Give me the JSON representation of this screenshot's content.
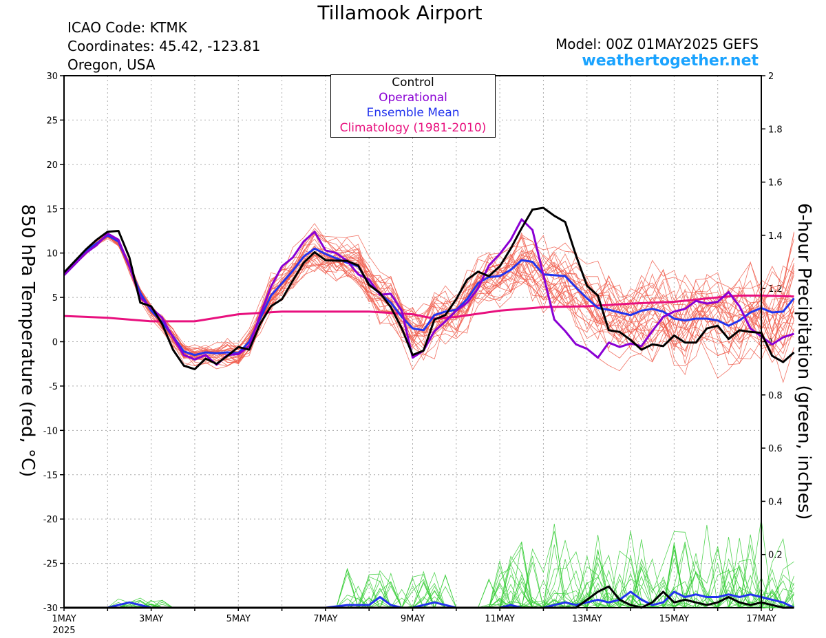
{
  "header": {
    "title": "Tillamook Airport",
    "icao": "ICAO Code: KTMK",
    "coords": "Coordinates: 45.42, -123.81",
    "region": "Oregon, USA",
    "model": "Model: 00Z 01MAY2025 GEFS",
    "site": "weathertogether.net"
  },
  "legend": {
    "items": [
      {
        "label": "Control",
        "color": "#000000"
      },
      {
        "label": "Operational",
        "color": "#8a00d4"
      },
      {
        "label": "Ensemble Mean",
        "color": "#2233ee"
      },
      {
        "label": "Climatology (1981-2010)",
        "color": "#e8107e"
      }
    ]
  },
  "chart_data": {
    "type": "line",
    "ylabel_left": "850 hPa Temperature (red, °C)",
    "ylabel_right": "6-hour Precipitation (green, inches)",
    "x_ticks": [
      "1MAY",
      "3MAY",
      "5MAY",
      "7MAY",
      "9MAY",
      "11MAY",
      "13MAY",
      "15MAY",
      "17MAY"
    ],
    "x_sub_label": "2025",
    "xlim_days": [
      0,
      16
    ],
    "ylim_left": [
      -30,
      30
    ],
    "ylim_right": [
      0,
      2
    ],
    "y_ticks_left": [
      30,
      25,
      20,
      15,
      10,
      5,
      0,
      -5,
      -10,
      -15,
      -20,
      -25,
      -30
    ],
    "y_ticks_right": [
      "2",
      "1.8",
      "1.6",
      "1.4",
      "1.2",
      "1",
      "0.8",
      "0.6",
      "0.4",
      "0.2",
      "0"
    ],
    "grid": true,
    "colors": {
      "members_temp": "#f05a4a",
      "members_precip": "#33cc33",
      "control": "#000000",
      "operational": "#8a00d4",
      "mean": "#2233ee",
      "climatology": "#e8107e"
    },
    "series": [
      {
        "name": "Control",
        "kind": "temp",
        "points": [
          [
            0,
            7.8
          ],
          [
            0.5,
            10.4
          ],
          [
            0.75,
            11.5
          ],
          [
            1,
            12.4
          ],
          [
            1.25,
            12.5
          ],
          [
            1.5,
            9.5
          ],
          [
            1.75,
            4.4
          ],
          [
            2,
            4
          ],
          [
            2.25,
            2
          ],
          [
            2.5,
            -0.9
          ],
          [
            2.75,
            -2.7
          ],
          [
            3,
            -3.1
          ],
          [
            3.25,
            -1.9
          ],
          [
            3.5,
            -2.5
          ],
          [
            3.75,
            -1.6
          ],
          [
            4,
            -0.6
          ],
          [
            4.25,
            -0.9
          ],
          [
            4.5,
            2
          ],
          [
            4.75,
            4
          ],
          [
            5,
            4.8
          ],
          [
            5.25,
            6.9
          ],
          [
            5.5,
            8.9
          ],
          [
            5.75,
            10.1
          ],
          [
            6,
            9.2
          ],
          [
            6.5,
            9.1
          ],
          [
            6.75,
            8.6
          ],
          [
            7,
            6.4
          ],
          [
            7.25,
            5.5
          ],
          [
            7.5,
            3.9
          ],
          [
            7.75,
            1.5
          ],
          [
            8,
            -1.5
          ],
          [
            8.25,
            -1
          ],
          [
            8.5,
            2.5
          ],
          [
            8.75,
            3
          ],
          [
            9,
            4.8
          ],
          [
            9.25,
            7
          ],
          [
            9.5,
            7.9
          ],
          [
            9.75,
            7.4
          ],
          [
            10,
            8.5
          ],
          [
            10.25,
            10.5
          ],
          [
            10.5,
            12.8
          ],
          [
            10.75,
            14.9
          ],
          [
            11,
            15.1
          ],
          [
            11.25,
            14.2
          ],
          [
            11.5,
            13.5
          ],
          [
            11.75,
            9.7
          ],
          [
            12,
            6.3
          ],
          [
            12.25,
            5.2
          ],
          [
            12.5,
            1.3
          ],
          [
            12.75,
            1.1
          ],
          [
            13,
            0.2
          ],
          [
            13.25,
            -0.9
          ],
          [
            13.5,
            -0.3
          ],
          [
            13.75,
            -0.5
          ],
          [
            14,
            0.7
          ],
          [
            14.25,
            -0.1
          ],
          [
            14.5,
            -0.1
          ],
          [
            14.75,
            1.5
          ],
          [
            15,
            1.8
          ],
          [
            15.25,
            0.3
          ],
          [
            15.5,
            1.3
          ],
          [
            15.75,
            1.1
          ],
          [
            16,
            1
          ],
          [
            16.25,
            -1.6
          ],
          [
            16.5,
            -2.3
          ],
          [
            16.75,
            -1.2
          ]
        ]
      },
      {
        "name": "Operational",
        "kind": "temp",
        "points": [
          [
            0,
            7.5
          ],
          [
            0.5,
            10
          ],
          [
            0.75,
            10.9
          ],
          [
            1,
            12.2
          ],
          [
            1.25,
            11.5
          ],
          [
            1.5,
            8.5
          ],
          [
            1.75,
            5
          ],
          [
            2,
            3.8
          ],
          [
            2.25,
            2.7
          ],
          [
            2.5,
            0.5
          ],
          [
            2.75,
            -1.5
          ],
          [
            3,
            -2
          ],
          [
            3.25,
            -1.5
          ],
          [
            3.5,
            -2.6
          ],
          [
            3.75,
            -1.5
          ],
          [
            4,
            -1.4
          ],
          [
            4.25,
            -0.5
          ],
          [
            4.5,
            3
          ],
          [
            4.75,
            6.2
          ],
          [
            5,
            8.5
          ],
          [
            5.25,
            9.5
          ],
          [
            5.5,
            11.3
          ],
          [
            5.75,
            12.4
          ],
          [
            6,
            10.3
          ],
          [
            6.25,
            10
          ],
          [
            6.5,
            9.1
          ],
          [
            6.75,
            7.6
          ],
          [
            7,
            7
          ],
          [
            7.25,
            5.3
          ],
          [
            7.5,
            5.4
          ],
          [
            7.75,
            3.5
          ],
          [
            8,
            -1.8
          ],
          [
            8.25,
            -1
          ],
          [
            8.5,
            1.2
          ],
          [
            8.75,
            2.3
          ],
          [
            9,
            3.5
          ],
          [
            9.25,
            4.4
          ],
          [
            9.5,
            6
          ],
          [
            9.75,
            8.6
          ],
          [
            10,
            9.9
          ],
          [
            10.25,
            11.5
          ],
          [
            10.5,
            13.8
          ],
          [
            10.75,
            12.6
          ],
          [
            11,
            7.5
          ],
          [
            11.25,
            2.5
          ],
          [
            11.5,
            1.2
          ],
          [
            11.75,
            -0.3
          ],
          [
            12,
            -0.8
          ],
          [
            12.25,
            -1.8
          ],
          [
            12.5,
            -0.1
          ],
          [
            12.75,
            -0.6
          ],
          [
            13,
            -0.2
          ],
          [
            13.25,
            -0.5
          ],
          [
            13.5,
            1.2
          ],
          [
            13.75,
            2.8
          ],
          [
            14,
            3.4
          ],
          [
            14.25,
            3.7
          ],
          [
            14.5,
            4.6
          ],
          [
            14.75,
            4.3
          ],
          [
            15,
            4.5
          ],
          [
            15.25,
            5.6
          ],
          [
            15.5,
            4
          ],
          [
            15.75,
            1.5
          ],
          [
            16,
            0.6
          ],
          [
            16.25,
            -0.3
          ],
          [
            16.5,
            0.5
          ],
          [
            16.75,
            0.9
          ]
        ]
      },
      {
        "name": "Ensemble Mean",
        "kind": "temp",
        "points": [
          [
            0,
            7.6
          ],
          [
            0.5,
            10.2
          ],
          [
            1,
            12
          ],
          [
            1.25,
            11.3
          ],
          [
            1.5,
            8.5
          ],
          [
            1.75,
            5.5
          ],
          [
            2,
            3.5
          ],
          [
            2.25,
            2.2
          ],
          [
            2.5,
            0.6
          ],
          [
            2.75,
            -1.1
          ],
          [
            3,
            -1.5
          ],
          [
            3.25,
            -1.2
          ],
          [
            3.5,
            -1.3
          ],
          [
            3.75,
            -1.2
          ],
          [
            4,
            -1.3
          ],
          [
            4.25,
            0
          ],
          [
            4.5,
            2.6
          ],
          [
            4.75,
            5.2
          ],
          [
            5,
            6.6
          ],
          [
            5.25,
            8
          ],
          [
            5.5,
            9.6
          ],
          [
            5.75,
            10.5
          ],
          [
            6,
            9.9
          ],
          [
            6.25,
            9.4
          ],
          [
            6.5,
            8.9
          ],
          [
            6.75,
            8.5
          ],
          [
            7,
            6.5
          ],
          [
            7.25,
            5.4
          ],
          [
            7.5,
            4.4
          ],
          [
            7.75,
            2.8
          ],
          [
            8,
            1.5
          ],
          [
            8.25,
            1.3
          ],
          [
            8.5,
            3
          ],
          [
            8.75,
            3.4
          ],
          [
            9,
            3.6
          ],
          [
            9.25,
            4.8
          ],
          [
            9.5,
            6.6
          ],
          [
            9.75,
            7.3
          ],
          [
            10,
            7.4
          ],
          [
            10.25,
            8.1
          ],
          [
            10.5,
            9.2
          ],
          [
            10.75,
            9
          ],
          [
            11,
            7.6
          ],
          [
            11.25,
            7.5
          ],
          [
            11.5,
            7.4
          ],
          [
            11.75,
            6.1
          ],
          [
            12,
            4.9
          ],
          [
            12.25,
            3.8
          ],
          [
            12.5,
            3.6
          ],
          [
            12.75,
            3.3
          ],
          [
            13,
            3
          ],
          [
            13.25,
            3.5
          ],
          [
            13.5,
            3.7
          ],
          [
            13.75,
            3.4
          ],
          [
            14,
            2.6
          ],
          [
            14.25,
            2.4
          ],
          [
            14.5,
            2.6
          ],
          [
            14.75,
            2.6
          ],
          [
            15,
            2.4
          ],
          [
            15.25,
            1.8
          ],
          [
            15.5,
            2.4
          ],
          [
            15.75,
            3.3
          ],
          [
            16,
            3.8
          ],
          [
            16.25,
            3.3
          ],
          [
            16.5,
            3.4
          ],
          [
            16.75,
            4.9
          ]
        ]
      },
      {
        "name": "Climatology (1981-2010)",
        "kind": "temp",
        "points": [
          [
            0,
            2.9
          ],
          [
            1,
            2.7
          ],
          [
            2,
            2.3
          ],
          [
            3,
            2.3
          ],
          [
            4,
            3.1
          ],
          [
            5,
            3.4
          ],
          [
            6,
            3.4
          ],
          [
            7,
            3.4
          ],
          [
            8,
            3.1
          ],
          [
            8.5,
            2.6
          ],
          [
            9,
            2.8
          ],
          [
            10,
            3.5
          ],
          [
            11,
            3.9
          ],
          [
            12,
            4
          ],
          [
            13,
            4.3
          ],
          [
            14,
            4.5
          ],
          [
            15,
            5
          ],
          [
            15.5,
            5.2
          ],
          [
            16,
            5.2
          ],
          [
            16.75,
            5.1
          ]
        ]
      },
      {
        "name": "Control",
        "kind": "precip",
        "points": [
          [
            0,
            0
          ],
          [
            11.75,
            0
          ],
          [
            12,
            0.03
          ],
          [
            12.25,
            0.06
          ],
          [
            12.5,
            0.08
          ],
          [
            12.75,
            0.03
          ],
          [
            13,
            0.01
          ],
          [
            13.25,
            0
          ],
          [
            13.5,
            0.02
          ],
          [
            13.75,
            0.06
          ],
          [
            14,
            0.02
          ],
          [
            14.25,
            0.03
          ],
          [
            14.5,
            0.02
          ],
          [
            14.75,
            0.01
          ],
          [
            15,
            0.02
          ],
          [
            15.25,
            0.04
          ],
          [
            15.5,
            0.02
          ],
          [
            15.75,
            0.01
          ],
          [
            16,
            0.02
          ],
          [
            16.25,
            0.01
          ],
          [
            16.5,
            0
          ],
          [
            16.75,
            0
          ]
        ]
      },
      {
        "name": "Ensemble Mean",
        "kind": "precip",
        "points": [
          [
            0,
            0
          ],
          [
            1,
            0
          ],
          [
            1.25,
            0.01
          ],
          [
            1.5,
            0.02
          ],
          [
            1.75,
            0.01
          ],
          [
            2,
            0
          ],
          [
            6,
            0
          ],
          [
            6.5,
            0.01
          ],
          [
            7,
            0.01
          ],
          [
            7.25,
            0.04
          ],
          [
            7.5,
            0.01
          ],
          [
            7.75,
            0
          ],
          [
            8,
            0
          ],
          [
            8.25,
            0.01
          ],
          [
            8.5,
            0.02
          ],
          [
            8.75,
            0.01
          ],
          [
            9,
            0
          ],
          [
            10,
            0
          ],
          [
            10.25,
            0.01
          ],
          [
            10.5,
            0
          ],
          [
            11,
            0
          ],
          [
            11.25,
            0.01
          ],
          [
            11.5,
            0.02
          ],
          [
            11.75,
            0.01
          ],
          [
            12,
            0.02
          ],
          [
            12.25,
            0.03
          ],
          [
            12.5,
            0.02
          ],
          [
            12.75,
            0.03
          ],
          [
            13,
            0.06
          ],
          [
            13.25,
            0.03
          ],
          [
            13.5,
            0.01
          ],
          [
            13.75,
            0.02
          ],
          [
            14,
            0.06
          ],
          [
            14.25,
            0.04
          ],
          [
            14.5,
            0.05
          ],
          [
            14.75,
            0.04
          ],
          [
            15,
            0.04
          ],
          [
            15.25,
            0.05
          ],
          [
            15.5,
            0.04
          ],
          [
            15.75,
            0.05
          ],
          [
            16,
            0.04
          ],
          [
            16.25,
            0.03
          ],
          [
            16.5,
            0.02
          ],
          [
            16.75,
            0
          ]
        ]
      }
    ]
  }
}
